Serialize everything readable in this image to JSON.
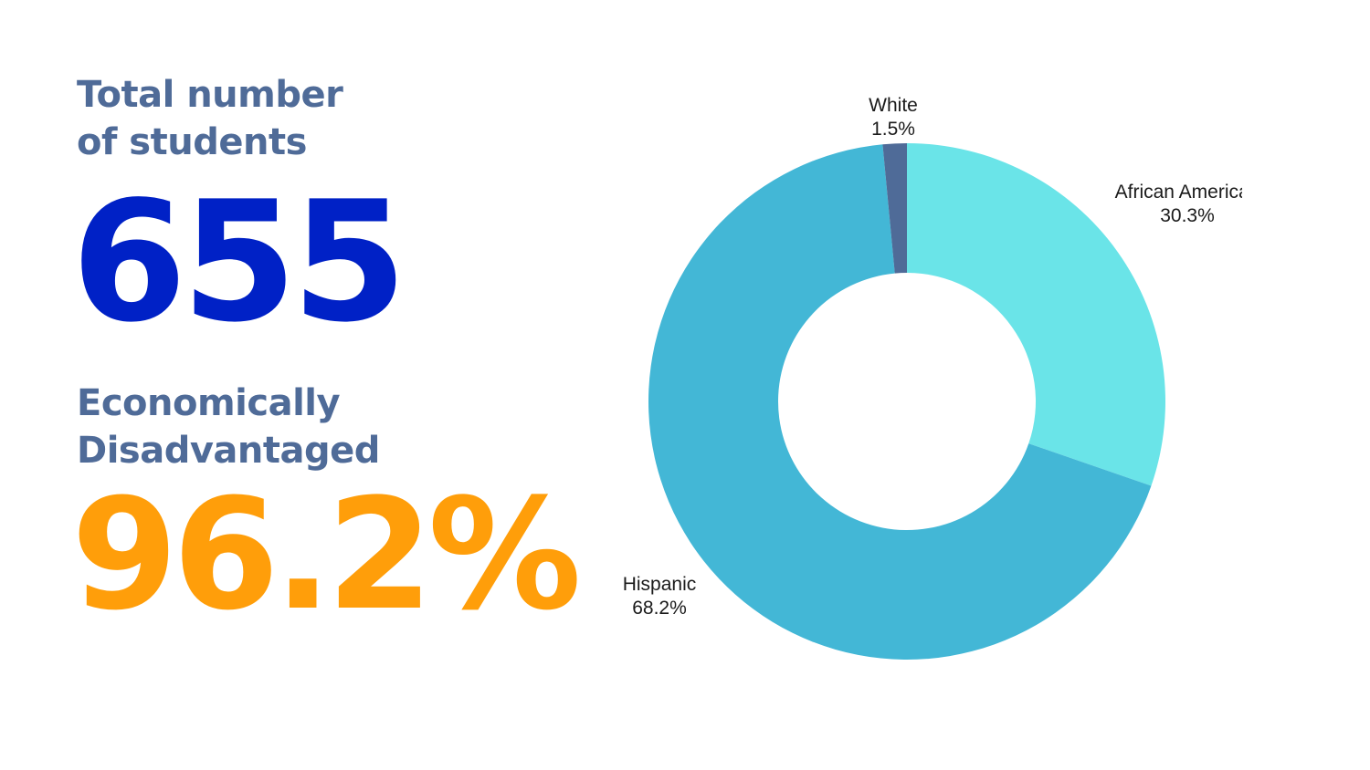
{
  "stats": {
    "students_heading_line1": "Total number",
    "students_heading_line2": "of students",
    "student_count": "655",
    "econ_heading_line1": "Economically",
    "econ_heading_line2": "Disadvantaged",
    "econ_percent": "96.2%"
  },
  "colors": {
    "heading": "#4f6b98",
    "count": "#0021c6",
    "percent": "#ff9e0a"
  },
  "chart_data": {
    "type": "pie",
    "donut": true,
    "start_angle_deg": 0,
    "direction": "clockwise",
    "slices": [
      {
        "label": "African American",
        "value": 30.3,
        "value_label": "30.3%",
        "color": "#6ae4e8"
      },
      {
        "label": "Hispanic",
        "value": 68.2,
        "value_label": "68.2%",
        "color": "#43b7d6"
      },
      {
        "label": "White",
        "value": 1.5,
        "value_label": "1.5%",
        "color": "#4f6b98"
      }
    ]
  }
}
